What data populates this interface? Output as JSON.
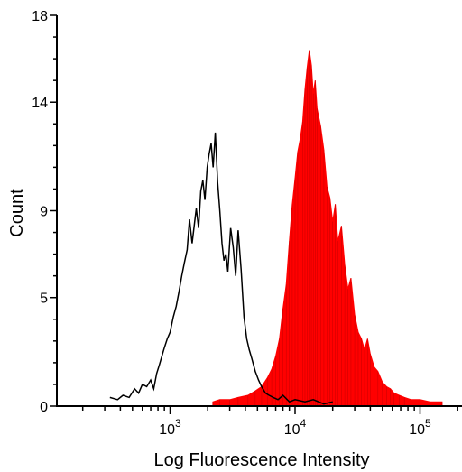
{
  "chart_data": {
    "type": "area",
    "title": "",
    "xlabel": "Log Fluorescence Intensity",
    "ylabel": "Count",
    "x_scale": "log",
    "xlim": [
      150,
      200000
    ],
    "ylim": [
      0,
      18
    ],
    "grid": false,
    "legend": "none",
    "y_ticks": [
      0,
      5,
      9,
      14,
      18
    ],
    "x_ticks": [
      {
        "value": 1000,
        "base": "10",
        "exp": "3"
      },
      {
        "value": 10000,
        "base": "10",
        "exp": "4"
      },
      {
        "value": 100000,
        "base": "10",
        "exp": "5"
      }
    ],
    "series": [
      {
        "style": "outline",
        "color": "#000000",
        "x": [
          330,
          380,
          420,
          470,
          520,
          560,
          600,
          650,
          700,
          740,
          780,
          820,
          860,
          900,
          950,
          1000,
          1060,
          1120,
          1180,
          1240,
          1300,
          1370,
          1430,
          1500,
          1560,
          1620,
          1690,
          1760,
          1830,
          1900,
          1980,
          2050,
          2130,
          2210,
          2300,
          2400,
          2500,
          2600,
          2700,
          2800,
          2900,
          3050,
          3200,
          3350,
          3500,
          3700,
          3900,
          4100,
          4300,
          4500,
          4800,
          5100,
          5400,
          5800,
          6200,
          6700,
          7300,
          8000,
          9000,
          10000,
          12000,
          14000,
          17000,
          20000
        ],
        "y": [
          0.4,
          0.3,
          0.5,
          0.4,
          0.8,
          0.6,
          1.0,
          0.9,
          1.2,
          0.8,
          1.5,
          1.9,
          2.3,
          2.7,
          3.1,
          3.4,
          4.1,
          4.6,
          5.3,
          6.0,
          6.6,
          7.2,
          8.6,
          7.5,
          8.3,
          9.1,
          8.2,
          9.9,
          10.4,
          9.5,
          11.0,
          11.6,
          12.1,
          11.0,
          12.6,
          10.3,
          9.0,
          7.5,
          6.7,
          7.0,
          6.2,
          8.2,
          7.3,
          6.0,
          8.1,
          6.3,
          4.1,
          3.1,
          2.6,
          2.2,
          1.6,
          1.2,
          0.9,
          0.6,
          0.5,
          0.4,
          0.3,
          0.5,
          0.2,
          0.3,
          0.2,
          0.3,
          0.1,
          0.2
        ]
      },
      {
        "style": "filled",
        "color": "#ff0000",
        "x": [
          2200,
          2500,
          3000,
          3500,
          4200,
          4800,
          5400,
          6000,
          6500,
          7000,
          7500,
          8000,
          8500,
          9000,
          9500,
          10000,
          10500,
          11000,
          11500,
          12000,
          12500,
          13000,
          13500,
          14000,
          14500,
          15000,
          16000,
          17000,
          18000,
          19000,
          20000,
          21000,
          22000,
          23500,
          25000,
          26500,
          28000,
          30000,
          32000,
          34000,
          36000,
          38000,
          40000,
          43000,
          46000,
          50000,
          54000,
          58000,
          62000,
          68000,
          75000,
          85000,
          100000,
          120000,
          150000
        ],
        "y": [
          0.2,
          0.3,
          0.3,
          0.4,
          0.5,
          0.7,
          0.9,
          1.3,
          1.7,
          2.3,
          3.1,
          4.5,
          5.6,
          7.6,
          9.3,
          10.5,
          11.7,
          12.3,
          13.1,
          14.6,
          15.6,
          16.4,
          15.7,
          14.4,
          15.0,
          13.7,
          12.9,
          11.8,
          10.1,
          9.6,
          8.5,
          9.3,
          7.6,
          8.3,
          6.5,
          5.4,
          5.9,
          4.2,
          3.4,
          3.1,
          2.6,
          3.1,
          2.4,
          1.8,
          1.6,
          1.1,
          0.9,
          0.8,
          0.6,
          0.5,
          0.4,
          0.3,
          0.3,
          0.2,
          0.2
        ]
      }
    ]
  }
}
